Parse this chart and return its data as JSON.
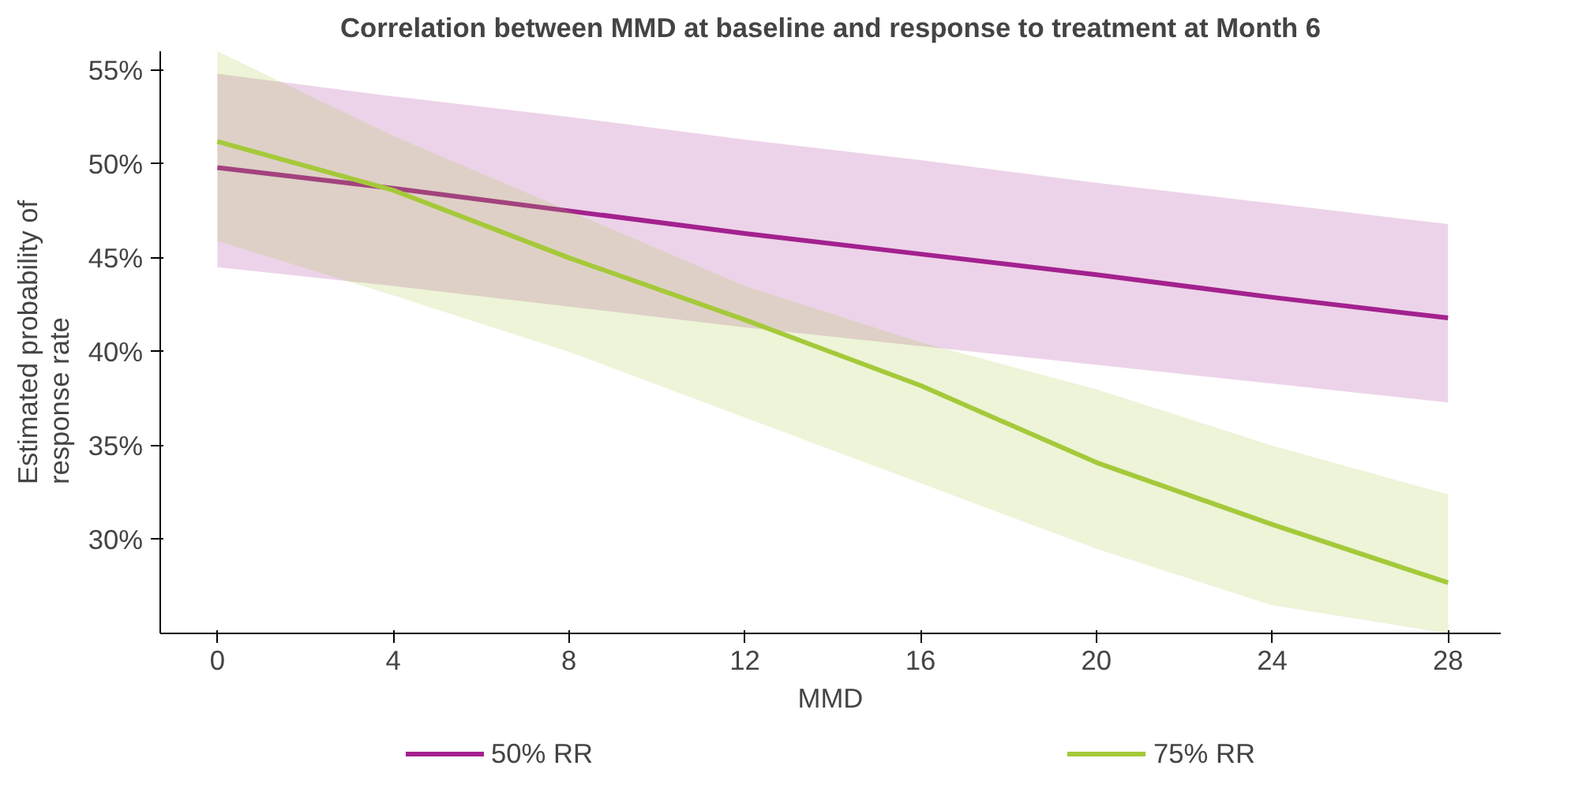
{
  "chart_data": {
    "type": "line",
    "title": "Correlation between MMD at baseline and response to treatment at Month 6",
    "xlabel": "MMD",
    "ylabel": "Estimated probability of\nresponse rate",
    "x": [
      0,
      4,
      8,
      12,
      16,
      20,
      24,
      28
    ],
    "series": [
      {
        "name": "50% RR",
        "color": "#a3218f",
        "values": [
          49.8,
          48.7,
          47.5,
          46.3,
          45.2,
          44.1,
          42.9,
          41.8
        ],
        "lower": [
          44.5,
          43.5,
          42.4,
          41.3,
          40.3,
          39.3,
          38.3,
          37.3
        ],
        "upper": [
          54.8,
          53.6,
          52.5,
          51.3,
          50.2,
          49.0,
          47.9,
          46.8
        ]
      },
      {
        "name": "75% RR",
        "color": "#a5c93a",
        "values": [
          51.2,
          48.6,
          45.0,
          41.7,
          38.2,
          34.1,
          30.8,
          27.7
        ],
        "lower": [
          45.9,
          43.0,
          40.0,
          36.5,
          33.0,
          29.5,
          26.5,
          25.0
        ],
        "upper": [
          56.0,
          51.5,
          47.5,
          43.5,
          40.5,
          38.0,
          35.0,
          32.4
        ]
      }
    ],
    "xlim": [
      -1.3,
      29.2
    ],
    "ylim": [
      25,
      56
    ],
    "xticks": [
      0,
      4,
      8,
      12,
      16,
      20,
      24,
      28
    ],
    "yticks": [
      {
        "value": 30,
        "label": "30%"
      },
      {
        "value": 35,
        "label": "35%"
      },
      {
        "value": 40,
        "label": "40%"
      },
      {
        "value": 45,
        "label": "45%"
      },
      {
        "value": 50,
        "label": "50%"
      },
      {
        "value": 55,
        "label": "55%"
      }
    ],
    "grid": false,
    "legend": "bottom",
    "marker": "none",
    "line_style": "solid"
  }
}
